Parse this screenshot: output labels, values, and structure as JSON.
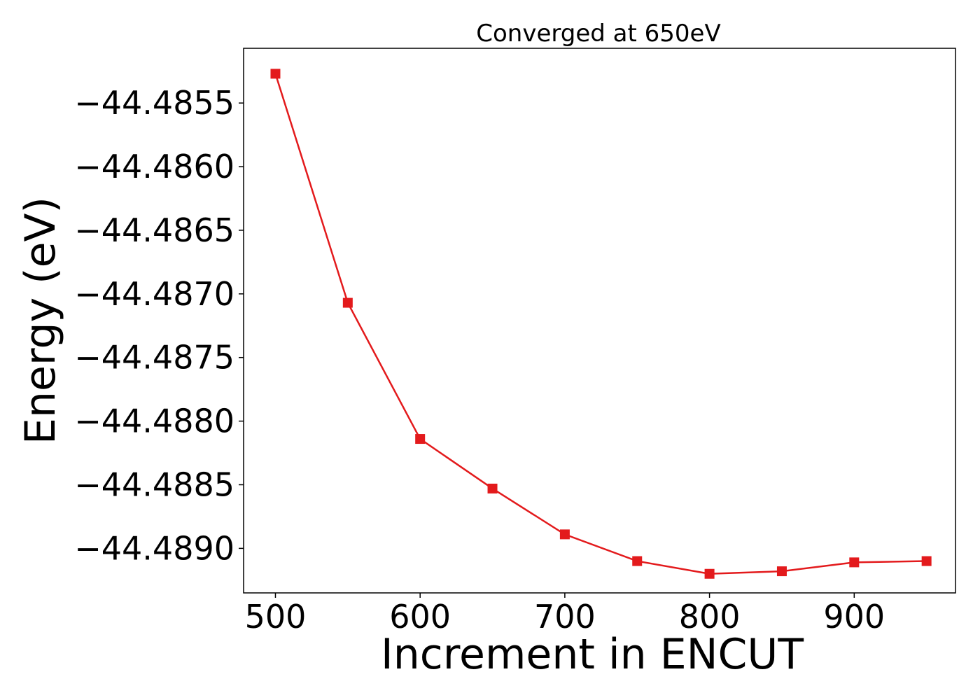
{
  "chart_data": {
    "type": "line",
    "title": "Converged at 650eV",
    "xlabel": "Increment in ENCUT",
    "ylabel": "Energy (eV)",
    "xlim": [
      478,
      970
    ],
    "ylim": [
      -44.48935,
      -44.48507
    ],
    "xticks": [
      500,
      600,
      700,
      800,
      900
    ],
    "yticks": [
      -44.4855,
      -44.486,
      -44.4865,
      -44.487,
      -44.4875,
      -44.488,
      -44.4885,
      -44.489
    ],
    "grid": false,
    "series": [
      {
        "color": "#e31a1c",
        "marker": "square",
        "x": [
          500,
          550,
          600,
          650,
          700,
          750,
          800,
          850,
          900,
          950
        ],
        "y": [
          -44.48527,
          -44.48707,
          -44.48814,
          -44.48853,
          -44.48889,
          -44.4891,
          -44.4892,
          -44.48918,
          -44.48911,
          -44.4891
        ]
      }
    ]
  }
}
